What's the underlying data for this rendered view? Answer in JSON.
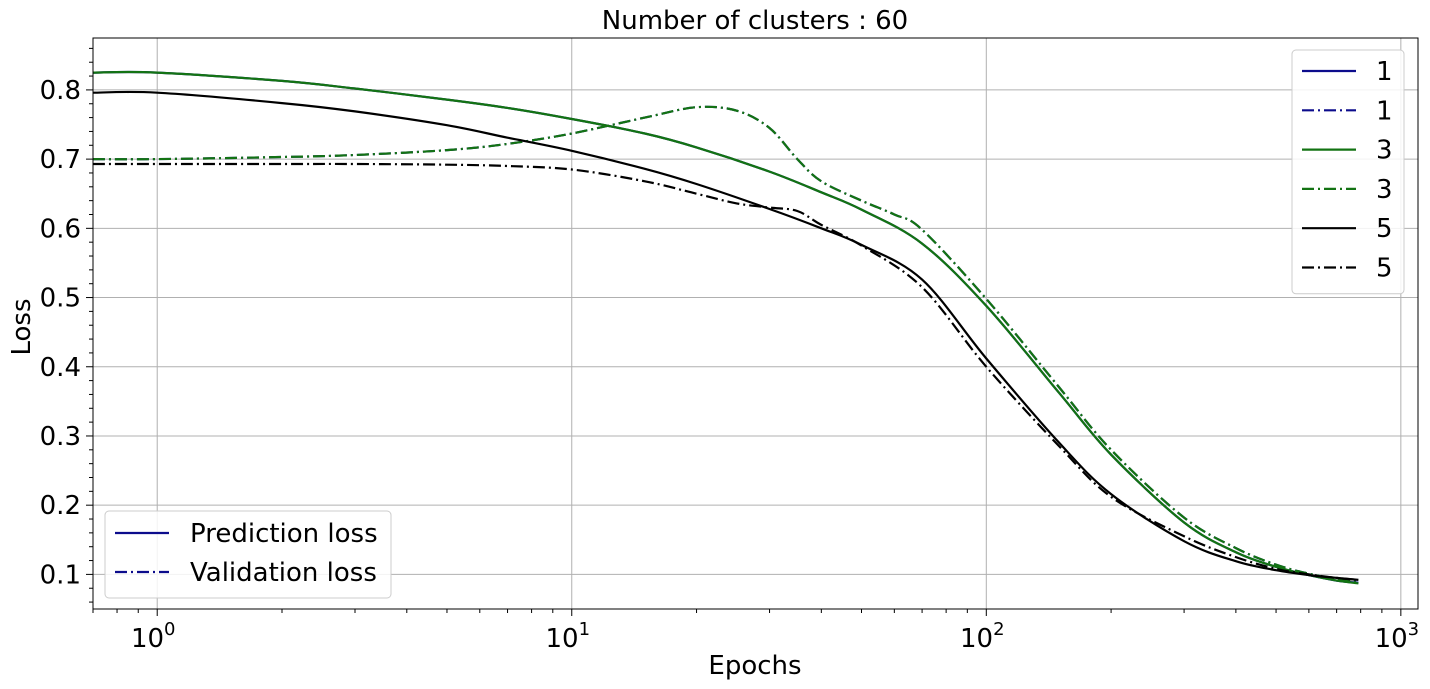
{
  "chart_data": {
    "type": "line",
    "title": "Number of clusters : 60",
    "xlabel": "Epochs",
    "ylabel": "Loss",
    "xscale": "log",
    "xlim": [
      0.7,
      1100
    ],
    "ylim": [
      0.05,
      0.875
    ],
    "grid": true,
    "x_ticks": [
      {
        "value": 1,
        "label": "10",
        "exp": "0"
      },
      {
        "value": 10,
        "label": "10",
        "exp": "1"
      },
      {
        "value": 100,
        "label": "10",
        "exp": "2"
      },
      {
        "value": 1000,
        "label": "10",
        "exp": "3"
      }
    ],
    "y_ticks": [
      {
        "value": 0.1,
        "label": "0.1"
      },
      {
        "value": 0.2,
        "label": "0.2"
      },
      {
        "value": 0.3,
        "label": "0.3"
      },
      {
        "value": 0.4,
        "label": "0.4"
      },
      {
        "value": 0.5,
        "label": "0.5"
      },
      {
        "value": 0.6,
        "label": "0.6"
      },
      {
        "value": 0.7,
        "label": "0.7"
      },
      {
        "value": 0.8,
        "label": "0.8"
      }
    ],
    "series": [
      {
        "name": "1",
        "color": "#0c0c8c",
        "style": "solid",
        "points": [
          [
            0.7,
            0.825
          ],
          [
            1,
            0.825
          ],
          [
            2,
            0.813
          ],
          [
            3,
            0.802
          ],
          [
            5,
            0.786
          ],
          [
            7,
            0.774
          ],
          [
            10,
            0.758
          ],
          [
            15,
            0.737
          ],
          [
            20,
            0.717
          ],
          [
            30,
            0.682
          ],
          [
            40,
            0.652
          ],
          [
            50,
            0.627
          ],
          [
            70,
            0.578
          ],
          [
            100,
            0.488
          ],
          [
            150,
            0.362
          ],
          [
            200,
            0.273
          ],
          [
            300,
            0.175
          ],
          [
            400,
            0.132
          ],
          [
            500,
            0.111
          ],
          [
            600,
            0.099
          ],
          [
            700,
            0.091
          ],
          [
            790,
            0.088
          ]
        ]
      },
      {
        "name": "1",
        "color": "#0c0c8c",
        "style": "dashdot",
        "points": [
          [
            0.7,
            0.7
          ],
          [
            1,
            0.7
          ],
          [
            2,
            0.703
          ],
          [
            3,
            0.706
          ],
          [
            5,
            0.713
          ],
          [
            7,
            0.722
          ],
          [
            10,
            0.737
          ],
          [
            15,
            0.76
          ],
          [
            20,
            0.775
          ],
          [
            25,
            0.77
          ],
          [
            30,
            0.745
          ],
          [
            35,
            0.7
          ],
          [
            40,
            0.668
          ],
          [
            50,
            0.64
          ],
          [
            60,
            0.62
          ],
          [
            70,
            0.598
          ],
          [
            100,
            0.498
          ],
          [
            150,
            0.37
          ],
          [
            200,
            0.28
          ],
          [
            300,
            0.182
          ],
          [
            400,
            0.138
          ],
          [
            500,
            0.114
          ],
          [
            600,
            0.101
          ],
          [
            700,
            0.093
          ],
          [
            790,
            0.089
          ]
        ]
      },
      {
        "name": "3",
        "color": "#137313",
        "style": "solid",
        "points": [
          [
            0.7,
            0.825
          ],
          [
            1,
            0.825
          ],
          [
            2,
            0.813
          ],
          [
            3,
            0.802
          ],
          [
            5,
            0.786
          ],
          [
            7,
            0.774
          ],
          [
            10,
            0.758
          ],
          [
            15,
            0.737
          ],
          [
            20,
            0.717
          ],
          [
            30,
            0.682
          ],
          [
            40,
            0.652
          ],
          [
            50,
            0.627
          ],
          [
            70,
            0.578
          ],
          [
            100,
            0.488
          ],
          [
            150,
            0.362
          ],
          [
            200,
            0.273
          ],
          [
            300,
            0.175
          ],
          [
            400,
            0.132
          ],
          [
            500,
            0.111
          ],
          [
            600,
            0.099
          ],
          [
            700,
            0.091
          ],
          [
            790,
            0.087
          ]
        ]
      },
      {
        "name": "3",
        "color": "#137313",
        "style": "dashdot",
        "points": [
          [
            0.7,
            0.7
          ],
          [
            1,
            0.7
          ],
          [
            2,
            0.703
          ],
          [
            3,
            0.706
          ],
          [
            5,
            0.713
          ],
          [
            7,
            0.722
          ],
          [
            10,
            0.737
          ],
          [
            15,
            0.76
          ],
          [
            20,
            0.775
          ],
          [
            25,
            0.77
          ],
          [
            30,
            0.745
          ],
          [
            35,
            0.7
          ],
          [
            40,
            0.668
          ],
          [
            50,
            0.64
          ],
          [
            60,
            0.62
          ],
          [
            70,
            0.598
          ],
          [
            100,
            0.498
          ],
          [
            150,
            0.37
          ],
          [
            200,
            0.28
          ],
          [
            300,
            0.182
          ],
          [
            400,
            0.138
          ],
          [
            500,
            0.114
          ],
          [
            600,
            0.101
          ],
          [
            700,
            0.093
          ],
          [
            790,
            0.088
          ]
        ]
      },
      {
        "name": "5",
        "color": "#000000",
        "style": "solid",
        "points": [
          [
            0.7,
            0.796
          ],
          [
            1,
            0.796
          ],
          [
            2,
            0.781
          ],
          [
            3,
            0.769
          ],
          [
            5,
            0.749
          ],
          [
            7,
            0.731
          ],
          [
            10,
            0.712
          ],
          [
            15,
            0.686
          ],
          [
            20,
            0.664
          ],
          [
            30,
            0.628
          ],
          [
            40,
            0.6
          ],
          [
            50,
            0.576
          ],
          [
            70,
            0.526
          ],
          [
            100,
            0.412
          ],
          [
            150,
            0.29
          ],
          [
            200,
            0.216
          ],
          [
            300,
            0.148
          ],
          [
            400,
            0.119
          ],
          [
            500,
            0.106
          ],
          [
            600,
            0.099
          ],
          [
            700,
            0.095
          ],
          [
            790,
            0.092
          ]
        ]
      },
      {
        "name": "5",
        "color": "#000000",
        "style": "dashdot",
        "points": [
          [
            0.7,
            0.693
          ],
          [
            1,
            0.693
          ],
          [
            2,
            0.693
          ],
          [
            3,
            0.693
          ],
          [
            5,
            0.692
          ],
          [
            7,
            0.69
          ],
          [
            10,
            0.685
          ],
          [
            15,
            0.668
          ],
          [
            20,
            0.65
          ],
          [
            25,
            0.636
          ],
          [
            30,
            0.63
          ],
          [
            35,
            0.625
          ],
          [
            40,
            0.605
          ],
          [
            50,
            0.575
          ],
          [
            70,
            0.515
          ],
          [
            100,
            0.4
          ],
          [
            150,
            0.285
          ],
          [
            200,
            0.212
          ],
          [
            300,
            0.155
          ],
          [
            400,
            0.125
          ],
          [
            500,
            0.108
          ],
          [
            600,
            0.1
          ],
          [
            700,
            0.095
          ],
          [
            790,
            0.092
          ]
        ]
      }
    ],
    "legend_series": {
      "placement": "upper-right"
    },
    "legend_style": {
      "placement": "lower-left",
      "entries": [
        {
          "name": "Prediction loss",
          "color": "#0c0c8c",
          "style": "solid"
        },
        {
          "name": "Validation loss",
          "color": "#0c0c8c",
          "style": "dashdot"
        }
      ]
    }
  }
}
